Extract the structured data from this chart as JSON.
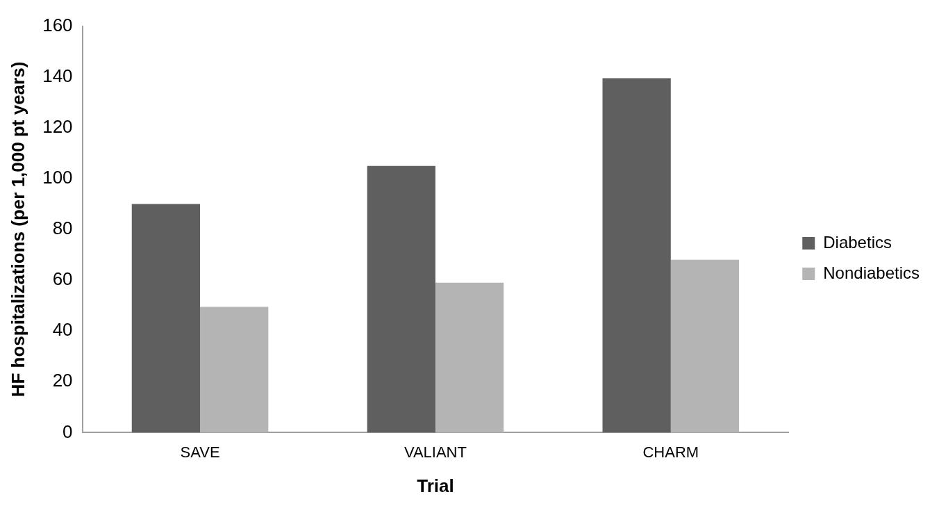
{
  "chart_data": {
    "type": "bar",
    "xlabel": "Trial",
    "ylabel": "HF hospitalizations (per 1,000 pt years)",
    "categories": [
      "SAVE",
      "VALIANT",
      "CHARM"
    ],
    "series": [
      {
        "name": "Diabetics",
        "color": "#5f5f5f",
        "values": [
          90,
          105,
          139.5
        ]
      },
      {
        "name": "Nondiabetics",
        "color": "#b4b4b4",
        "values": [
          49.5,
          59,
          68
        ]
      }
    ],
    "ylim": [
      0,
      160
    ],
    "yticks": [
      0,
      20,
      40,
      60,
      80,
      100,
      120,
      140,
      160
    ],
    "grid": false,
    "legend": "right"
  }
}
